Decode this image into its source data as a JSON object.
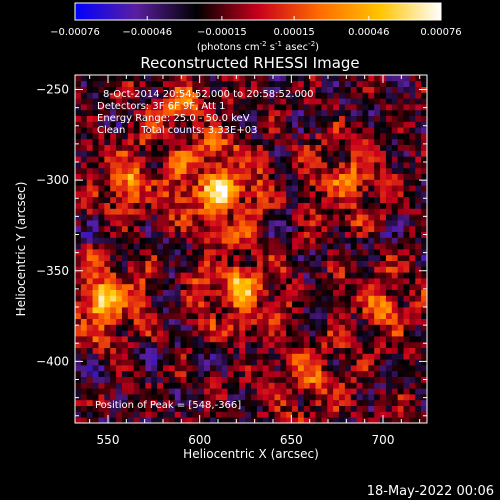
{
  "chart_data": {
    "type": "heatmap",
    "title": "Reconstructed RHESSI Image",
    "xlabel": "Heliocentric X (arcsec)",
    "ylabel": "Heliocentric Y (arcsec)",
    "xlim": [
      532,
      724
    ],
    "ylim": [
      -434,
      -242
    ],
    "x_ticks": [
      550,
      600,
      650,
      700
    ],
    "y_ticks": [
      -250,
      -300,
      -350,
      -400
    ],
    "colorbar": {
      "range": [
        -0.00076,
        0.00076
      ],
      "ticks": [
        -0.00076,
        -0.00046,
        -0.00015,
        0.00015,
        0.00046,
        0.00076
      ],
      "tick_labels": [
        "-0.00076",
        "-0.00046",
        "-0.00015",
        "0.00015",
        "0.00046",
        "0.00076"
      ],
      "unit_label": "(photons cm",
      "unit_sup1": "-2",
      "unit_mid": " s",
      "unit_sup2": "-1",
      "unit_mid2": " asec",
      "unit_sup3": "-2",
      "unit_end": ")",
      "colormap": [
        "#0000ff",
        "#5a1fa0",
        "#000000",
        "#c8001c",
        "#ff6a00",
        "#ffc400",
        "#ffffff"
      ]
    },
    "annotations": [
      "8-Oct-2014 20:54:52.000 to 20:58:52.000",
      "Detectors: 3F 6F 9F, Att 1",
      "Energy Range: 25.0 - 50.0 keV",
      "Clean     Total counts: 3.33E+03"
    ],
    "peak_label": "Position of Peak = [548,-366]",
    "peak": [
      548,
      -366
    ],
    "sources": [
      {
        "x": 548,
        "y": -366,
        "amp": 1.0,
        "sigma": 12
      },
      {
        "x": 611,
        "y": -304,
        "amp": 0.95,
        "sigma": 14
      },
      {
        "x": 562,
        "y": -300,
        "amp": 0.6,
        "sigma": 12
      },
      {
        "x": 680,
        "y": -300,
        "amp": 0.55,
        "sigma": 14
      },
      {
        "x": 622,
        "y": -360,
        "amp": 0.7,
        "sigma": 14
      },
      {
        "x": 700,
        "y": -370,
        "amp": 0.55,
        "sigma": 12
      },
      {
        "x": 590,
        "y": -260,
        "amp": 0.5,
        "sigma": 12
      },
      {
        "x": 660,
        "y": -410,
        "amp": 0.45,
        "sigma": 14
      }
    ]
  },
  "timestamp": "18-May-2022 00:06"
}
